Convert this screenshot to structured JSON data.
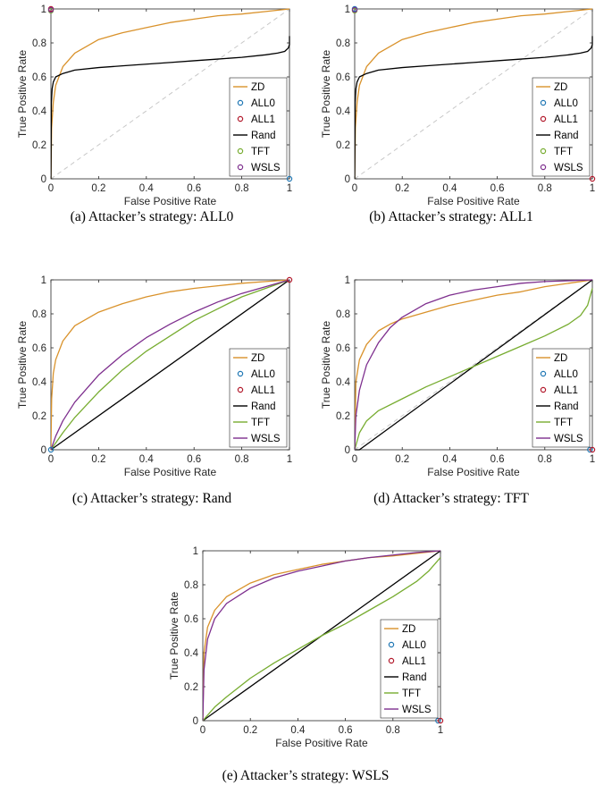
{
  "figure": {
    "x_axis_label": "False Positive Rate",
    "y_axis_label": "True Positive Rate",
    "x_ticks": [
      "0",
      "0.2",
      "0.4",
      "0.6",
      "0.8",
      "1"
    ],
    "y_ticks": [
      "0",
      "0.2",
      "0.4",
      "0.6",
      "0.8",
      "1"
    ],
    "legend_labels": [
      "ZD",
      "ALL0",
      "ALL1",
      "Rand",
      "TFT",
      "WSLS"
    ],
    "colors": {
      "ZD": "#d9922b",
      "ALL0": "#1f77b4",
      "ALL1": "#b2182b",
      "Rand": "#000000",
      "TFT": "#77ac30",
      "WSLS": "#7e2f8e",
      "diagonal": "#c8c8c8"
    }
  },
  "chart_data": [
    {
      "caption": "(a)  Attacker’s strategy: ALL0",
      "type": "line",
      "xlim": [
        0,
        1
      ],
      "ylim": [
        0,
        1
      ],
      "legend_position": "bottom-right",
      "series": [
        {
          "name": "ZD",
          "kind": "line",
          "x": [
            0,
            0.003,
            0.01,
            0.02,
            0.05,
            0.1,
            0.2,
            0.3,
            0.4,
            0.5,
            0.6,
            0.7,
            0.8,
            0.9,
            1
          ],
          "y": [
            0,
            0.3,
            0.45,
            0.55,
            0.66,
            0.74,
            0.82,
            0.86,
            0.89,
            0.92,
            0.94,
            0.96,
            0.97,
            0.985,
            1
          ]
        },
        {
          "name": "ALL0",
          "kind": "point",
          "x": [
            1
          ],
          "y": [
            0
          ]
        },
        {
          "name": "ALL1",
          "kind": "point",
          "x": [
            0
          ],
          "y": [
            1
          ]
        },
        {
          "name": "Rand",
          "kind": "line",
          "x": [
            0,
            0.002,
            0.005,
            0.01,
            0.02,
            0.05,
            0.1,
            0.2,
            0.3,
            0.4,
            0.5,
            0.6,
            0.7,
            0.8,
            0.9,
            0.95,
            0.98,
            0.995,
            1,
            1,
            1
          ],
          "y": [
            0,
            0.45,
            0.53,
            0.57,
            0.6,
            0.62,
            0.64,
            0.655,
            0.665,
            0.675,
            0.685,
            0.695,
            0.705,
            0.715,
            0.73,
            0.74,
            0.75,
            0.77,
            0.79,
            0.82,
            0.84
          ]
        },
        {
          "name": "TFT",
          "kind": "point",
          "x": [
            0
          ],
          "y": [
            0.99
          ]
        },
        {
          "name": "WSLS",
          "kind": "point",
          "x": [
            0
          ],
          "y": [
            0.995
          ]
        }
      ]
    },
    {
      "caption": "(b)  Attacker’s strategy: ALL1",
      "type": "line",
      "xlim": [
        0,
        1
      ],
      "ylim": [
        0,
        1
      ],
      "legend_position": "bottom-right",
      "series": [
        {
          "name": "ZD",
          "kind": "line",
          "x": [
            0,
            0.003,
            0.01,
            0.02,
            0.05,
            0.1,
            0.2,
            0.3,
            0.4,
            0.5,
            0.6,
            0.7,
            0.8,
            0.9,
            1
          ],
          "y": [
            0,
            0.3,
            0.45,
            0.55,
            0.66,
            0.74,
            0.82,
            0.86,
            0.89,
            0.92,
            0.94,
            0.96,
            0.97,
            0.985,
            1
          ]
        },
        {
          "name": "ALL0",
          "kind": "point",
          "x": [
            0
          ],
          "y": [
            1
          ]
        },
        {
          "name": "ALL1",
          "kind": "point",
          "x": [
            1
          ],
          "y": [
            0
          ]
        },
        {
          "name": "Rand",
          "kind": "line",
          "x": [
            0,
            0.002,
            0.005,
            0.01,
            0.02,
            0.05,
            0.1,
            0.2,
            0.3,
            0.4,
            0.5,
            0.6,
            0.7,
            0.8,
            0.9,
            0.95,
            0.98,
            0.995,
            1,
            1,
            1
          ],
          "y": [
            0,
            0.45,
            0.53,
            0.57,
            0.6,
            0.62,
            0.64,
            0.655,
            0.665,
            0.675,
            0.685,
            0.695,
            0.705,
            0.715,
            0.73,
            0.74,
            0.75,
            0.77,
            0.79,
            0.82,
            0.84
          ]
        },
        {
          "name": "TFT",
          "kind": "point",
          "x": [
            0
          ],
          "y": [
            0.99
          ]
        },
        {
          "name": "WSLS",
          "kind": "point",
          "x": [
            0
          ],
          "y": [
            0.995
          ]
        }
      ]
    },
    {
      "caption": "(c)  Attacker’s strategy: Rand",
      "type": "line",
      "xlim": [
        0,
        1
      ],
      "ylim": [
        0,
        1
      ],
      "legend_position": "bottom-right",
      "series": [
        {
          "name": "ZD",
          "kind": "line",
          "x": [
            0,
            0.003,
            0.01,
            0.02,
            0.05,
            0.1,
            0.2,
            0.3,
            0.4,
            0.5,
            0.6,
            0.7,
            0.8,
            0.9,
            1
          ],
          "y": [
            0,
            0.3,
            0.45,
            0.53,
            0.64,
            0.73,
            0.81,
            0.86,
            0.9,
            0.93,
            0.95,
            0.965,
            0.98,
            0.99,
            1
          ]
        },
        {
          "name": "ALL0",
          "kind": "point",
          "x": [
            0
          ],
          "y": [
            0
          ]
        },
        {
          "name": "ALL1",
          "kind": "point",
          "x": [
            1
          ],
          "y": [
            1
          ]
        },
        {
          "name": "Rand",
          "kind": "line",
          "x": [
            0,
            1
          ],
          "y": [
            0,
            1
          ]
        },
        {
          "name": "TFT",
          "kind": "line",
          "x": [
            0,
            0.05,
            0.1,
            0.2,
            0.3,
            0.4,
            0.5,
            0.6,
            0.7,
            0.8,
            0.9,
            1
          ],
          "y": [
            0,
            0.1,
            0.19,
            0.34,
            0.47,
            0.58,
            0.67,
            0.76,
            0.83,
            0.9,
            0.95,
            1
          ]
        },
        {
          "name": "WSLS",
          "kind": "line",
          "x": [
            0,
            0.02,
            0.05,
            0.1,
            0.2,
            0.3,
            0.4,
            0.5,
            0.6,
            0.7,
            0.8,
            0.9,
            1
          ],
          "y": [
            0,
            0.08,
            0.17,
            0.28,
            0.44,
            0.56,
            0.66,
            0.74,
            0.81,
            0.87,
            0.92,
            0.96,
            1
          ]
        }
      ]
    },
    {
      "caption": "(d)  Attacker’s strategy: TFT",
      "type": "line",
      "xlim": [
        0,
        1
      ],
      "ylim": [
        0,
        1
      ],
      "legend_position": "bottom-right",
      "series": [
        {
          "name": "ZD",
          "kind": "line",
          "x": [
            0,
            0.005,
            0.02,
            0.05,
            0.1,
            0.15,
            0.2,
            0.3,
            0.4,
            0.5,
            0.6,
            0.7,
            0.8,
            0.9,
            1
          ],
          "y": [
            0,
            0.4,
            0.53,
            0.62,
            0.7,
            0.74,
            0.77,
            0.81,
            0.85,
            0.88,
            0.91,
            0.93,
            0.96,
            0.98,
            1
          ]
        },
        {
          "name": "ALL0",
          "kind": "point",
          "x": [
            0.99
          ],
          "y": [
            0
          ]
        },
        {
          "name": "ALL1",
          "kind": "point",
          "x": [
            1
          ],
          "y": [
            0
          ]
        },
        {
          "name": "Rand",
          "kind": "line",
          "x": [
            0,
            0.02,
            1
          ],
          "y": [
            0,
            0,
            1
          ]
        },
        {
          "name": "TFT",
          "kind": "line",
          "x": [
            0,
            0.02,
            0.05,
            0.1,
            0.2,
            0.3,
            0.4,
            0.5,
            0.6,
            0.7,
            0.8,
            0.9,
            0.95,
            0.98,
            1
          ],
          "y": [
            0,
            0.1,
            0.17,
            0.23,
            0.3,
            0.37,
            0.43,
            0.49,
            0.55,
            0.61,
            0.67,
            0.74,
            0.79,
            0.85,
            0.95
          ]
        },
        {
          "name": "WSLS",
          "kind": "line",
          "x": [
            0,
            0.005,
            0.02,
            0.05,
            0.1,
            0.15,
            0.2,
            0.3,
            0.4,
            0.5,
            0.6,
            0.7,
            0.8,
            0.9,
            1
          ],
          "y": [
            0,
            0.2,
            0.35,
            0.5,
            0.63,
            0.72,
            0.78,
            0.86,
            0.91,
            0.94,
            0.96,
            0.98,
            0.99,
            0.995,
            1
          ]
        }
      ]
    },
    {
      "caption": "(e)  Attacker’s strategy: WSLS",
      "type": "line",
      "xlim": [
        0,
        1
      ],
      "ylim": [
        0,
        1
      ],
      "legend_position": "bottom-right",
      "series": [
        {
          "name": "ZD",
          "kind": "line",
          "x": [
            0,
            0.005,
            0.02,
            0.05,
            0.1,
            0.2,
            0.3,
            0.4,
            0.5,
            0.6,
            0.7,
            0.8,
            0.9,
            1
          ],
          "y": [
            0,
            0.4,
            0.55,
            0.65,
            0.73,
            0.81,
            0.86,
            0.89,
            0.92,
            0.94,
            0.96,
            0.97,
            0.985,
            1
          ]
        },
        {
          "name": "ALL0",
          "kind": "point",
          "x": [
            0.99
          ],
          "y": [
            0
          ]
        },
        {
          "name": "ALL1",
          "kind": "point",
          "x": [
            1
          ],
          "y": [
            0
          ]
        },
        {
          "name": "Rand",
          "kind": "line",
          "x": [
            0,
            1
          ],
          "y": [
            0,
            1
          ]
        },
        {
          "name": "TFT",
          "kind": "line",
          "x": [
            0,
            0.05,
            0.1,
            0.2,
            0.3,
            0.4,
            0.5,
            0.6,
            0.7,
            0.8,
            0.9,
            0.95,
            1
          ],
          "y": [
            0,
            0.08,
            0.14,
            0.25,
            0.34,
            0.42,
            0.5,
            0.57,
            0.65,
            0.73,
            0.82,
            0.88,
            0.96
          ]
        },
        {
          "name": "WSLS",
          "kind": "line",
          "x": [
            0,
            0.005,
            0.02,
            0.05,
            0.1,
            0.2,
            0.3,
            0.4,
            0.5,
            0.6,
            0.7,
            0.8,
            0.9,
            1
          ],
          "y": [
            0,
            0.3,
            0.48,
            0.6,
            0.69,
            0.78,
            0.84,
            0.88,
            0.91,
            0.94,
            0.96,
            0.975,
            0.99,
            1
          ]
        }
      ]
    }
  ]
}
